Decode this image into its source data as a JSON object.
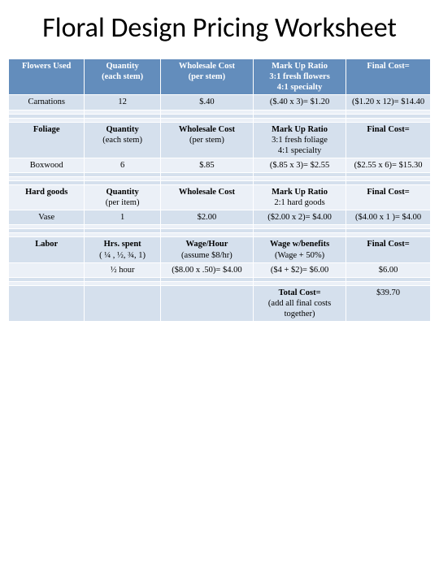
{
  "title": "Floral Design Pricing Worksheet",
  "colors": {
    "header_bg": "#638dbc",
    "header_fg": "#ffffff",
    "row_light": "#d5e0ed",
    "row_mid": "#ebf0f7",
    "page_bg": "#ffffff"
  },
  "sections": {
    "flowers": {
      "header": {
        "c1": "Flowers Used",
        "c2": "Quantity",
        "c2sub": "(each stem)",
        "c3": "Wholesale Cost",
        "c3sub": "(per stem)",
        "c4": "Mark Up Ratio",
        "c4line2": "3:1 fresh flowers",
        "c4line3": "4:1 specialty",
        "c5": "Final Cost="
      },
      "row": {
        "c1": "Carnations",
        "c2": "12",
        "c3": "$.40",
        "c4": "($.40 x 3)= $1.20",
        "c5": "($1.20 x 12)= $14.40"
      }
    },
    "foliage": {
      "header": {
        "c1": "Foliage",
        "c2": "Quantity",
        "c2sub": "(each stem)",
        "c3": "Wholesale Cost",
        "c3sub": "(per stem)",
        "c4": "Mark Up Ratio",
        "c4line2": "3:1 fresh foliage",
        "c4line3": "4:1 specialty",
        "c5": "Final Cost="
      },
      "row": {
        "c1": "Boxwood",
        "c2": "6",
        "c3": "$.85",
        "c4": "($.85 x 3)= $2.55",
        "c5": "($2.55 x 6)= $15.30"
      }
    },
    "hardgoods": {
      "header": {
        "c1": "Hard goods",
        "c2": "Quantity",
        "c2sub": "(per item)",
        "c3": "Wholesale Cost",
        "c4": "Mark Up Ratio",
        "c4line2": "2:1 hard goods",
        "c5": "Final Cost="
      },
      "row": {
        "c1": "Vase",
        "c2": "1",
        "c3": "$2.00",
        "c4": "($2.00 x 2)= $4.00",
        "c5": "($4.00 x 1 )= $4.00"
      }
    },
    "labor": {
      "header": {
        "c1": "Labor",
        "c2": "Hrs. spent",
        "c2sub": "( ¼ , ½, ¾, 1)",
        "c3": "Wage/Hour",
        "c3sub": "(assume $8/hr)",
        "c4": "Wage w/benefits",
        "c4line2": "(Wage + 50%)",
        "c5": "Final Cost="
      },
      "row": {
        "c2": "½ hour",
        "c3": "($8.00 x .50)= $4.00",
        "c4": "($4 + $2)= $6.00",
        "c5": "$6.00"
      }
    },
    "total": {
      "label": "Total Cost=",
      "sub": "(add all final costs together)",
      "value": "$39.70"
    }
  }
}
